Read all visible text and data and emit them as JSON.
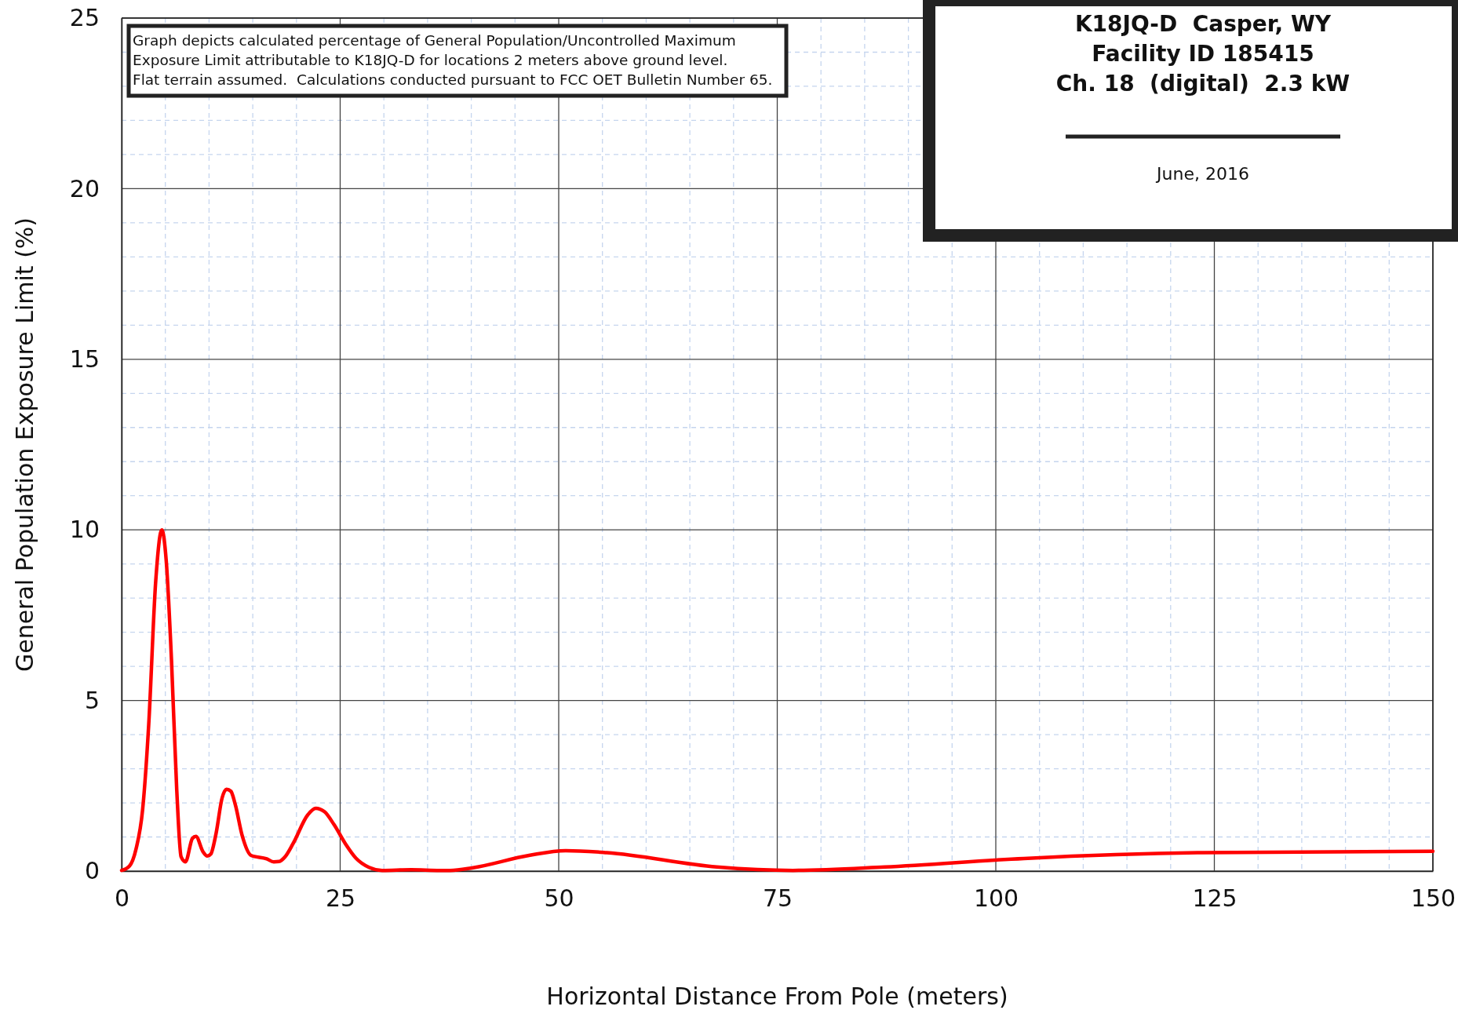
{
  "chart_data": {
    "type": "line",
    "title": "K18JQ-D  Casper, WY",
    "subtitle": "Facility ID 185415",
    "xlabel": "Horizontal Distance From Pole (meters)",
    "ylabel": "General Population Exposure Limit (%)",
    "annotations": [
      "Graph depicts calculated percentage of General Population/Uncontrolled Maximum\nExposure Limit attributable to K18JQ-D for locations 2 meters above ground level.\nFlat terrain assumed.  Calculations conducted pursuant to FCC OET Bulletin Number 65.",
      "Ch. 18  (digital)  2.3 kW",
      "June, 2016"
    ],
    "xlim": [
      0,
      150
    ],
    "xticks": [
      0,
      {
        "value": 5,
        "label": null
      },
      {
        "value": 10,
        "label": null
      },
      {
        "value": 15,
        "label": null
      },
      {
        "value": 20,
        "label": null
      },
      25,
      {
        "value": 30,
        "label": null
      },
      {
        "value": 35,
        "label": null
      },
      {
        "value": 40,
        "label": null
      },
      {
        "value": 45,
        "label": null
      },
      50,
      {
        "value": 55,
        "label": null
      },
      {
        "value": 60,
        "label": null
      },
      {
        "value": 65,
        "label": null
      },
      {
        "value": 70,
        "label": null
      },
      75,
      {
        "value": 80,
        "label": null
      },
      {
        "value": 85,
        "label": null
      },
      {
        "value": 90,
        "label": null
      },
      {
        "value": 95,
        "label": null
      },
      100,
      {
        "value": 105,
        "label": null
      },
      {
        "value": 110,
        "label": null
      },
      {
        "value": 115,
        "label": null
      },
      {
        "value": 120,
        "label": null
      },
      125,
      {
        "value": 130,
        "label": null
      },
      {
        "value": 135,
        "label": null
      },
      {
        "value": 140,
        "label": null
      },
      {
        "value": 145,
        "label": null
      },
      150
    ],
    "ylim": [
      0,
      25
    ],
    "yticks": [
      0,
      {
        "value": 1,
        "label": null
      },
      {
        "value": 2,
        "label": null
      },
      {
        "value": 3,
        "label": null
      },
      {
        "value": 4,
        "label": null
      },
      5,
      {
        "value": 6,
        "label": null
      },
      {
        "value": 7,
        "label": null
      },
      {
        "value": 8,
        "label": null
      },
      {
        "value": 9,
        "label": null
      },
      10,
      {
        "value": 11,
        "label": null
      },
      {
        "value": 12,
        "label": null
      },
      {
        "value": 13,
        "label": null
      },
      {
        "value": 14,
        "label": null
      },
      15,
      {
        "value": 16,
        "label": null
      },
      {
        "value": 17,
        "label": null
      },
      {
        "value": 18,
        "label": null
      },
      {
        "value": 19,
        "label": null
      },
      20,
      {
        "value": 21,
        "label": null
      },
      {
        "value": 22,
        "label": null
      },
      {
        "value": 23,
        "label": null
      },
      {
        "value": 24,
        "label": null
      },
      25
    ],
    "grid": true,
    "series": [
      {
        "color": "#ff0000",
        "x": [
          0,
          0.9,
          1.65,
          2.4,
          3.1,
          3.9,
          4.6,
          5.1,
          5.7,
          6.3,
          6.8,
          7.3,
          8.1,
          8.5,
          9.3,
          9.8,
          10.2,
          10.8,
          11.5,
          12.0,
          12.5,
          13.0,
          13.8,
          14.8,
          16.6,
          17.4,
          18.0,
          18.7,
          19.6,
          21.3,
          22.2,
          23.2,
          24.3,
          25.6,
          26.8,
          28.3,
          29.8,
          33.1,
          36.4,
          37.6,
          40.2,
          46.6,
          50.8,
          55.5,
          68.1,
          76.8,
          87.3,
          103.2,
          123.6,
          150
        ],
        "values": [
          0.02,
          0.15,
          0.65,
          1.8,
          4.3,
          8.5,
          10.0,
          9.1,
          6.2,
          2.4,
          0.42,
          0.27,
          0.96,
          1.02,
          0.57,
          0.44,
          0.5,
          1.1,
          2.15,
          2.4,
          2.34,
          1.95,
          1.03,
          0.46,
          0.36,
          0.27,
          0.28,
          0.42,
          0.8,
          1.65,
          1.84,
          1.74,
          1.36,
          0.8,
          0.38,
          0.11,
          0.02,
          0.04,
          0.02,
          0.02,
          0.1,
          0.46,
          0.6,
          0.54,
          0.12,
          0.02,
          0.12,
          0.37,
          0.54,
          0.58
        ]
      }
    ]
  }
}
